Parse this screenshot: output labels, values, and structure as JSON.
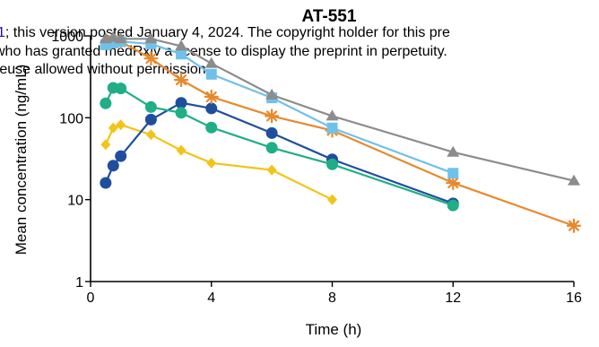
{
  "chart_data": {
    "type": "line",
    "title": "AT-551",
    "xlabel": "Time (h)",
    "ylabel": "Mean concentration (ng/mL)",
    "xlim": [
      0,
      16
    ],
    "ylim": [
      1,
      1000
    ],
    "yscale": "log",
    "x_ticks": [
      "0",
      "4",
      "8",
      "12",
      "16"
    ],
    "y_ticks": [
      "1",
      "10",
      "100",
      "1000"
    ],
    "grid": false,
    "series": [
      {
        "color": "#f2c418",
        "marker": "diamond",
        "x": [
          0.5,
          0.75,
          1,
          2,
          3,
          4,
          6,
          8
        ],
        "y": [
          47,
          75,
          82,
          62,
          40,
          28,
          23,
          10
        ]
      },
      {
        "color": "#1f4e9e",
        "marker": "circle",
        "x": [
          0.5,
          0.75,
          1,
          2,
          3,
          4,
          6,
          8,
          12
        ],
        "y": [
          16,
          26,
          34,
          95,
          152,
          130,
          65,
          31,
          9
        ]
      },
      {
        "color": "#1fae86",
        "marker": "circle",
        "x": [
          0.5,
          0.75,
          1,
          2,
          3,
          4,
          6,
          8,
          12
        ],
        "y": [
          150,
          232,
          228,
          135,
          115,
          76,
          43,
          27,
          8.5
        ]
      },
      {
        "color": "#e8892b",
        "marker": "asterisk",
        "x": [
          0.75,
          1,
          2,
          3,
          4,
          6,
          8,
          12,
          16
        ],
        "y": [
          880,
          850,
          530,
          290,
          180,
          105,
          70,
          16,
          4.8
        ]
      },
      {
        "color": "#6fc1ea",
        "marker": "square",
        "x": [
          0.5,
          0.75,
          1,
          2,
          3,
          4,
          6,
          8,
          12
        ],
        "y": [
          780,
          820,
          850,
          800,
          600,
          340,
          175,
          75,
          21
        ]
      },
      {
        "color": "#8c8c8c",
        "marker": "triangle",
        "x": [
          0.5,
          0.75,
          1,
          2,
          3,
          4,
          6,
          8,
          12,
          16
        ],
        "y": [
          920,
          960,
          920,
          920,
          750,
          460,
          190,
          105,
          38,
          17
        ]
      }
    ]
  },
  "watermark": {
    "line1_link": "1",
    "line1_text": "; this version posted January 4, 2024. The copyright holder for this pre",
    "line2": "who has granted medRxiv a license to display the preprint in perpetuity.",
    "line3": "reuse allowed without permission."
  }
}
